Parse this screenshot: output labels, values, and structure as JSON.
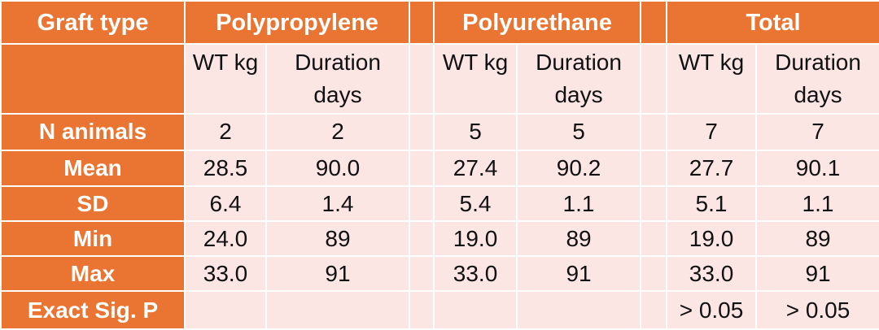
{
  "table": {
    "header": {
      "graft_type": "Graft type",
      "groups": [
        "Polypropylene",
        "Polyurethane",
        "Total"
      ]
    },
    "subheaders": {
      "wt": "WT kg",
      "duration_line1": "Duration",
      "duration_line2": "days"
    },
    "rows": [
      {
        "label": "N animals",
        "values": [
          "2",
          "2",
          "5",
          "5",
          "7",
          "7"
        ]
      },
      {
        "label": "Mean",
        "values": [
          "28.5",
          "90.0",
          "27.4",
          "90.2",
          "27.7",
          "90.1"
        ]
      },
      {
        "label": "SD",
        "values": [
          "6.4",
          "1.4",
          "5.4",
          "1.1",
          "5.1",
          "1.1"
        ]
      },
      {
        "label": "Min",
        "values": [
          "24.0",
          "89",
          "19.0",
          "89",
          "19.0",
          "89"
        ]
      },
      {
        "label": "Max",
        "values": [
          "33.0",
          "91",
          "33.0",
          "91",
          "33.0",
          "91"
        ]
      },
      {
        "label": "Exact Sig. P",
        "values": [
          "",
          "",
          "",
          "",
          "> 0.05",
          "> 0.05"
        ]
      }
    ],
    "colors": {
      "header": "#ea7431",
      "cell": "#fbe6e4"
    }
  }
}
